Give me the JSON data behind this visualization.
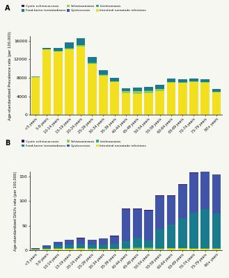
{
  "age_groups": [
    "<5 years",
    "5-9 years",
    "10-14 years",
    "15-19 years",
    "20-24 years",
    "25-29 years",
    "30-34 years",
    "35-39 years",
    "40-44 years",
    "45-49 years",
    "50-54 years",
    "55-59 years",
    "60-64 years",
    "65-69 years",
    "70-74 years",
    "75-79 years",
    "80+ years"
  ],
  "prevalence": {
    "Cystic echinococcosis": [
      5,
      8,
      10,
      12,
      12,
      10,
      10,
      8,
      8,
      8,
      8,
      8,
      8,
      8,
      8,
      8,
      8
    ],
    "Cysticercosis": [
      5,
      8,
      12,
      15,
      15,
      12,
      10,
      8,
      8,
      8,
      8,
      8,
      8,
      8,
      8,
      8,
      8
    ],
    "Food-borne trematodiases": [
      80,
      350,
      700,
      1200,
      1400,
      1200,
      900,
      700,
      600,
      700,
      700,
      800,
      700,
      600,
      600,
      600,
      550
    ],
    "Leishmaniasis": [
      20,
      40,
      60,
      80,
      80,
      60,
      50,
      40,
      50,
      70,
      70,
      80,
      60,
      50,
      50,
      50,
      40
    ],
    "Schistosomiasis": [
      0,
      0,
      30,
      150,
      300,
      200,
      150,
      100,
      400,
      600,
      500,
      350,
      150,
      100,
      80,
      80,
      60
    ],
    "Intestinal nematode infections": [
      8200,
      14100,
      13700,
      14200,
      14700,
      11000,
      8500,
      7100,
      4700,
      4500,
      4700,
      5200,
      6900,
      6900,
      7100,
      7000,
      4900
    ]
  },
  "dalys": {
    "Intestinal nematode infections": [
      1.5,
      2.0,
      2.5,
      2.5,
      2.5,
      2.0,
      2.0,
      2.0,
      2.0,
      2.0,
      2.0,
      2.0,
      2.5,
      2.5,
      2.5,
      2.5,
      2.5
    ],
    "Schistosomiasis": [
      0.1,
      0.2,
      0.5,
      0.8,
      1.2,
      1.0,
      0.8,
      0.8,
      1.5,
      2.0,
      2.0,
      1.5,
      1.2,
      1.2,
      1.0,
      1.0,
      0.8
    ],
    "Leishmaniasis": [
      0.3,
      0.5,
      0.8,
      0.8,
      0.8,
      0.7,
      0.6,
      0.6,
      0.8,
      1.0,
      1.0,
      1.2,
      1.2,
      1.2,
      1.2,
      1.2,
      1.2
    ],
    "Food-borne trematodiases": [
      1.0,
      2.5,
      5.5,
      7.5,
      8.0,
      7.5,
      8.5,
      10.0,
      14.0,
      20.0,
      15.0,
      38.0,
      48.0,
      60.0,
      72.0,
      78.0,
      70.0
    ],
    "Cysticercosis": [
      1.5,
      4.5,
      7.5,
      9.5,
      11.5,
      9.5,
      12.0,
      15.5,
      65.0,
      58.0,
      60.0,
      67.0,
      58.0,
      68.0,
      80.0,
      84.0,
      79.0
    ],
    "Cystic echinococcosis": [
      0.2,
      0.4,
      0.6,
      0.8,
      1.0,
      0.8,
      0.7,
      0.7,
      1.2,
      1.8,
      1.8,
      1.8,
      1.4,
      1.4,
      1.2,
      1.0,
      0.8
    ]
  },
  "colors": {
    "Cystic echinococcosis": "#3b1260",
    "Cysticercosis": "#4055a8",
    "Food-borne trematodiases": "#1a7b8c",
    "Leishmaniasis": "#2baa8a",
    "Schistosomiasis": "#90cc5a",
    "Intestinal nematode infections": "#f2e020"
  },
  "bg_color": "#f7f7f2"
}
